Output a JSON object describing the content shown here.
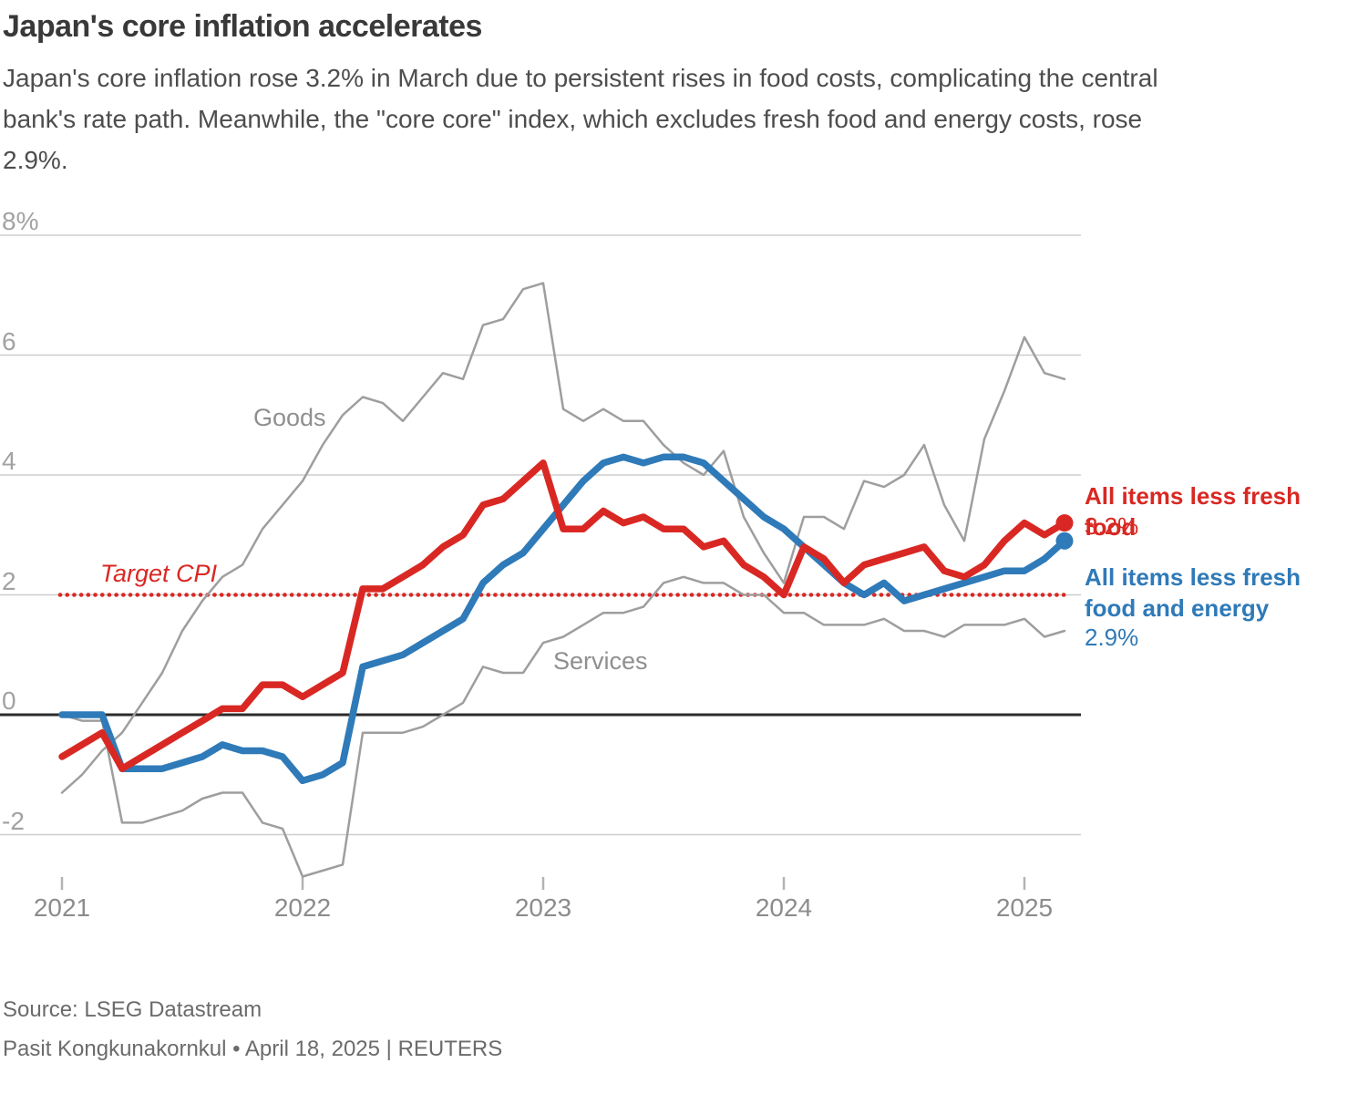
{
  "header": {
    "title": "Japan's core inflation accelerates",
    "subtitle_lines": [
      "Japan's core inflation rose 3.2% in March due to persistent rises in food costs, complicating the central",
      "bank's rate path. Meanwhile, the \"core core\" index, which excludes fresh food and energy costs, rose",
      "2.9%."
    ]
  },
  "footer": {
    "source": "Source: LSEG Datastream",
    "byline": "Pasit Kongkunakornkul • April 18, 2025 | REUTERS"
  },
  "colors": {
    "red": "#d92823",
    "blue": "#2f7ab8",
    "gray_series": "#9e9e9e",
    "gridline": "#cdcdcd",
    "zero_line": "#2b2b2b",
    "tick": "#b3b3b3"
  },
  "chart_data": {
    "type": "line",
    "title": "Japan's core inflation accelerates",
    "frequency": "monthly",
    "x_start": "2021-01",
    "x_end": "2025-03",
    "x_months": [
      "2021-01",
      "2021-02",
      "2021-03",
      "2021-04",
      "2021-05",
      "2021-06",
      "2021-07",
      "2021-08",
      "2021-09",
      "2021-10",
      "2021-11",
      "2021-12",
      "2022-01",
      "2022-02",
      "2022-03",
      "2022-04",
      "2022-05",
      "2022-06",
      "2022-07",
      "2022-08",
      "2022-09",
      "2022-10",
      "2022-11",
      "2022-12",
      "2023-01",
      "2023-02",
      "2023-03",
      "2023-04",
      "2023-05",
      "2023-06",
      "2023-07",
      "2023-08",
      "2023-09",
      "2023-10",
      "2023-11",
      "2023-12",
      "2024-01",
      "2024-02",
      "2024-03",
      "2024-04",
      "2024-05",
      "2024-06",
      "2024-07",
      "2024-08",
      "2024-09",
      "2024-10",
      "2024-11",
      "2024-12",
      "2025-01",
      "2025-02",
      "2025-03"
    ],
    "y_axis": {
      "unit": "%",
      "ticks": [
        {
          "label": "8%",
          "value": 8
        },
        {
          "label": "6",
          "value": 6
        },
        {
          "label": "4",
          "value": 4
        },
        {
          "label": "2",
          "value": 2
        },
        {
          "label": "0",
          "value": 0
        },
        {
          "label": "-2",
          "value": -2
        }
      ],
      "range": [
        -3.3,
        8
      ],
      "grid": true
    },
    "x_axis": {
      "year_ticks": [
        {
          "label": "2021",
          "month_index": 0
        },
        {
          "label": "2022",
          "month_index": 12
        },
        {
          "label": "2023",
          "month_index": 24
        },
        {
          "label": "2024",
          "month_index": 36
        },
        {
          "label": "2025",
          "month_index": 48
        }
      ]
    },
    "target_line": {
      "label": "Target CPI",
      "value": 2,
      "color": "#d92823",
      "style": "dotted"
    },
    "series": [
      {
        "name": "Goods",
        "color": "#9e9e9e",
        "width": 2.5,
        "end_marker": false,
        "values": [
          -1.3,
          -1.0,
          -0.6,
          -0.3,
          0.2,
          0.7,
          1.4,
          1.9,
          2.3,
          2.5,
          3.1,
          3.5,
          3.9,
          4.5,
          5.0,
          5.3,
          5.2,
          4.9,
          5.3,
          5.7,
          5.6,
          6.5,
          6.6,
          7.1,
          7.2,
          5.1,
          4.9,
          5.1,
          4.9,
          4.9,
          4.5,
          4.2,
          4.0,
          4.4,
          3.3,
          2.7,
          2.2,
          3.3,
          3.3,
          3.1,
          3.9,
          3.8,
          4.0,
          4.5,
          3.5,
          2.9,
          4.6,
          5.4,
          6.3,
          5.7,
          5.6
        ]
      },
      {
        "name": "Services",
        "color": "#9e9e9e",
        "width": 2.5,
        "end_marker": false,
        "values": [
          0.0,
          -0.1,
          -0.1,
          -1.8,
          -1.8,
          -1.7,
          -1.6,
          -1.4,
          -1.3,
          -1.3,
          -1.8,
          -1.9,
          -2.7,
          -2.6,
          -2.5,
          -0.3,
          -0.3,
          -0.3,
          -0.2,
          0.0,
          0.2,
          0.8,
          0.7,
          0.7,
          1.2,
          1.3,
          1.5,
          1.7,
          1.7,
          1.8,
          2.2,
          2.3,
          2.2,
          2.2,
          2.0,
          2.0,
          1.7,
          1.7,
          1.5,
          1.5,
          1.5,
          1.6,
          1.4,
          1.4,
          1.3,
          1.5,
          1.5,
          1.5,
          1.6,
          1.3,
          1.4
        ]
      },
      {
        "name": "All items less fresh food and energy",
        "color": "#2f7ab8",
        "width": 7.5,
        "end_marker": true,
        "values": [
          0.0,
          0.0,
          0.0,
          -0.9,
          -0.9,
          -0.9,
          -0.8,
          -0.7,
          -0.5,
          -0.6,
          -0.6,
          -0.7,
          -1.1,
          -1.0,
          -0.8,
          0.8,
          0.9,
          1.0,
          1.2,
          1.4,
          1.6,
          2.2,
          2.5,
          2.7,
          3.1,
          3.5,
          3.9,
          4.2,
          4.3,
          4.2,
          4.3,
          4.3,
          4.2,
          3.9,
          3.6,
          3.3,
          3.1,
          2.8,
          2.5,
          2.2,
          2.0,
          2.2,
          1.9,
          2.0,
          2.1,
          2.2,
          2.3,
          2.4,
          2.4,
          2.6,
          2.9
        ]
      },
      {
        "name": "All items less fresh food",
        "color": "#d92823",
        "width": 7.5,
        "end_marker": true,
        "values": [
          -0.7,
          -0.5,
          -0.3,
          -0.9,
          -0.7,
          -0.5,
          -0.3,
          -0.1,
          0.1,
          0.1,
          0.5,
          0.5,
          0.3,
          0.5,
          0.7,
          2.1,
          2.1,
          2.3,
          2.5,
          2.8,
          3.0,
          3.5,
          3.6,
          3.9,
          4.2,
          3.1,
          3.1,
          3.4,
          3.2,
          3.3,
          3.1,
          3.1,
          2.8,
          2.9,
          2.5,
          2.3,
          2.0,
          2.8,
          2.6,
          2.2,
          2.5,
          2.6,
          2.7,
          2.8,
          2.4,
          2.3,
          2.5,
          2.9,
          3.2,
          3.0,
          3.2
        ]
      }
    ],
    "series_labels": [
      {
        "text": "Goods"
      },
      {
        "text": "Services"
      }
    ],
    "end_labels": [
      {
        "title": "All items less fresh food",
        "value": "3.2%",
        "color": "#d92823"
      },
      {
        "title": "All items less fresh food and energy",
        "value": "2.9%",
        "color": "#2f7ab8"
      }
    ],
    "legend_position": "right",
    "grid": "horizontal-only"
  }
}
